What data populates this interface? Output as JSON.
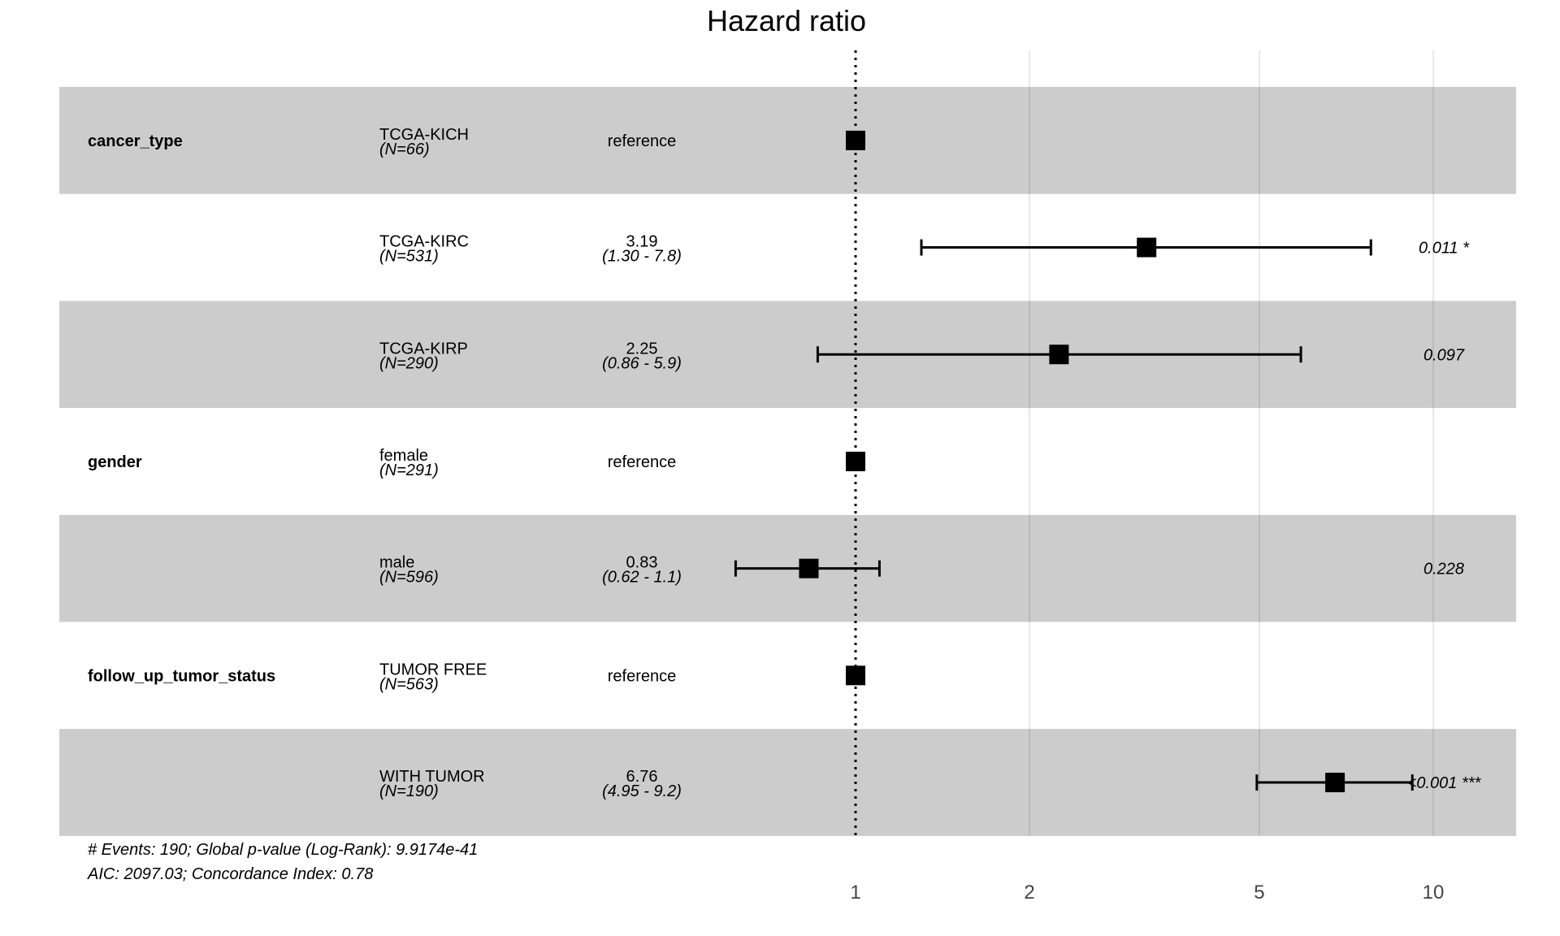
{
  "chart_data": {
    "type": "forest",
    "title": "Hazard ratio",
    "x_scale": "log",
    "xlim": [
      0.59,
      12.5
    ],
    "x_ticks": [
      1,
      2,
      5,
      10
    ],
    "x_tick_labels": [
      "1",
      "2",
      "5",
      "10"
    ],
    "reference_line": 1,
    "grid": true,
    "rows": [
      {
        "variable": "cancer_type",
        "level": "TCGA-KICH",
        "n": "(N=66)",
        "estimate_label": "reference",
        "ci_label": "",
        "hr": 1,
        "lower": null,
        "upper": null,
        "p": ""
      },
      {
        "variable": "",
        "level": "TCGA-KIRC",
        "n": "(N=531)",
        "estimate_label": "3.19",
        "ci_label": "(1.30 - 7.8)",
        "hr": 3.19,
        "lower": 1.3,
        "upper": 7.8,
        "p": "0.011 *"
      },
      {
        "variable": "",
        "level": "TCGA-KIRP",
        "n": "(N=290)",
        "estimate_label": "2.25",
        "ci_label": "(0.86 - 5.9)",
        "hr": 2.25,
        "lower": 0.86,
        "upper": 5.9,
        "p": "0.097"
      },
      {
        "variable": "gender",
        "level": "female",
        "n": "(N=291)",
        "estimate_label": "reference",
        "ci_label": "",
        "hr": 1,
        "lower": null,
        "upper": null,
        "p": ""
      },
      {
        "variable": "",
        "level": "male",
        "n": "(N=596)",
        "estimate_label": "0.83",
        "ci_label": "(0.62 - 1.1)",
        "hr": 0.83,
        "lower": 0.62,
        "upper": 1.1,
        "p": "0.228"
      },
      {
        "variable": "follow_up_tumor_status",
        "level": "TUMOR FREE",
        "n": "(N=563)",
        "estimate_label": "reference",
        "ci_label": "",
        "hr": 1,
        "lower": null,
        "upper": null,
        "p": ""
      },
      {
        "variable": "",
        "level": "WITH TUMOR",
        "n": "(N=190)",
        "estimate_label": "6.76",
        "ci_label": "(4.95 - 9.2)",
        "hr": 6.76,
        "lower": 4.95,
        "upper": 9.2,
        "p": "<0.001 ***"
      }
    ],
    "footnotes": [
      "# Events: 190; Global p-value (Log-Rank): 9.9174e-41",
      "AIC: 2097.03; Concordance Index: 0.78"
    ],
    "colors": {
      "band": "#cccccc",
      "marker": "#000000",
      "grid": "#dcdcdc"
    }
  }
}
